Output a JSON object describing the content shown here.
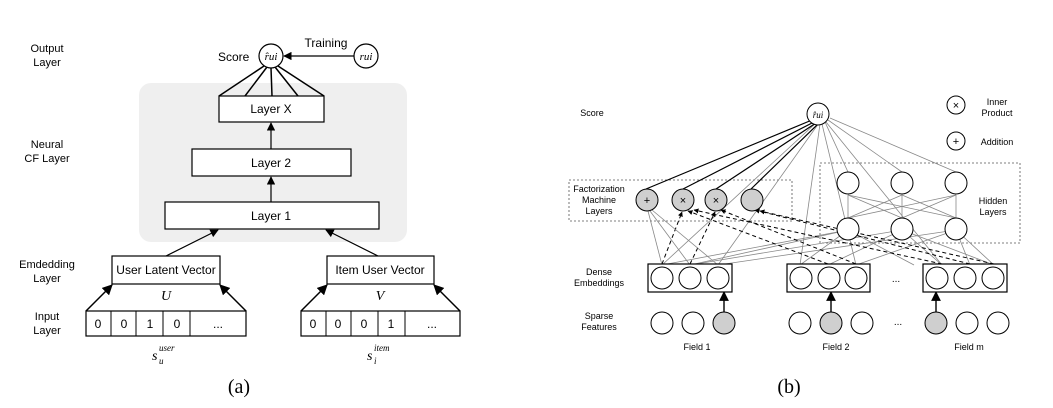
{
  "panel_a": {
    "layer_labels": {
      "output": [
        "Output",
        "Layer"
      ],
      "neural": [
        "Neural",
        "CF Layer"
      ],
      "embedding": [
        "Emdedding",
        "Layer"
      ],
      "input": [
        "Input",
        "Layer"
      ]
    },
    "score_label": "Score",
    "training_label": "Training",
    "output_node": "r̂ui",
    "target_node": "rui",
    "layers": [
      "Layer X",
      "Layer 2",
      "Layer 1"
    ],
    "user_vector": "User Latent Vector",
    "item_vector": "Item User Vector",
    "user_matrix": "U",
    "item_matrix": "V",
    "user_onehot": [
      "0",
      "0",
      "1",
      "0",
      "..."
    ],
    "item_onehot": [
      "0",
      "0",
      "0",
      "1",
      "..."
    ],
    "user_input_label": "s",
    "user_input_sub": "u",
    "user_input_sup": "user",
    "item_input_label": "s",
    "item_input_sub": "i",
    "item_input_sup": "item",
    "caption": "(a)"
  },
  "panel_b": {
    "score_label": "Score",
    "score_node": "r̂ui",
    "fm_label": [
      "Factorization",
      "Machine",
      "Layers"
    ],
    "hidden_label": [
      "Hidden",
      "Layers"
    ],
    "dense_label": [
      "Dense",
      "Embeddings"
    ],
    "sparse_label": [
      "Sparse",
      "Features"
    ],
    "fm_nodes": [
      "+",
      "×",
      "×",
      ""
    ],
    "legend": [
      {
        "symbol": "×",
        "text": [
          "Inner",
          "Product"
        ]
      },
      {
        "symbol": "+",
        "text": [
          "Addition"
        ]
      }
    ],
    "fields": [
      "Field 1",
      "Field 2",
      "Field m"
    ],
    "ellipsis": "...",
    "caption": "(b)"
  },
  "colors": {
    "stroke": "#000000",
    "gray_stroke": "#888888",
    "panel_bg": "#efefef",
    "node_fill_gray": "#cfcfcf"
  }
}
